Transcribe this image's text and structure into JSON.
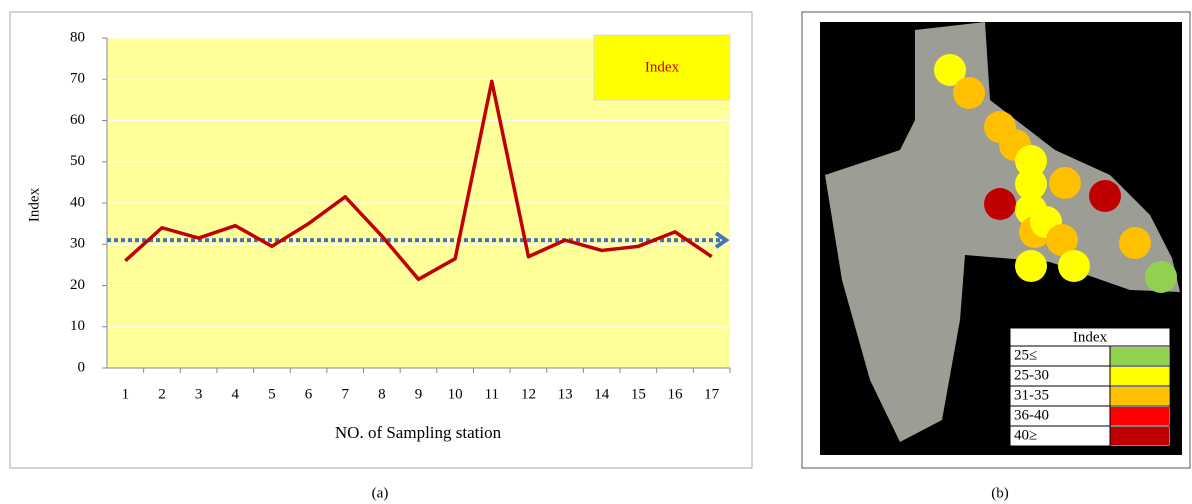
{
  "chart_data": {
    "type": "line",
    "categories": [
      "1",
      "2",
      "3",
      "4",
      "5",
      "6",
      "7",
      "8",
      "9",
      "10",
      "11",
      "12",
      "13",
      "14",
      "15",
      "16",
      "17"
    ],
    "series": [
      {
        "name": "Index",
        "color": "#c00000",
        "values": [
          26,
          34,
          31.5,
          34.5,
          29.5,
          35,
          41.5,
          32,
          21.5,
          26.5,
          69.5,
          27,
          31,
          28.5,
          29.5,
          33,
          27
        ]
      }
    ],
    "ylim": [
      0,
      80
    ],
    "yticks": [
      0,
      10,
      20,
      30,
      40,
      50,
      60,
      70,
      80
    ],
    "ylabel": "Index",
    "xlabel": "NO. of Sampling station",
    "reference_line": {
      "value": 31,
      "color": "#4472c4"
    },
    "legend": "top-right",
    "caption": "(a)"
  },
  "map": {
    "caption": "(b)",
    "legend_title": "Index",
    "legend": [
      {
        "label": "25≤",
        "color": "#92d050"
      },
      {
        "label": "25-30",
        "color": "#ffff00"
      },
      {
        "label": "31-35",
        "color": "#ffc000"
      },
      {
        "label": "36-40",
        "color": "#ff0000"
      },
      {
        "label": "40≥",
        "color": "#c00000"
      }
    ]
  }
}
